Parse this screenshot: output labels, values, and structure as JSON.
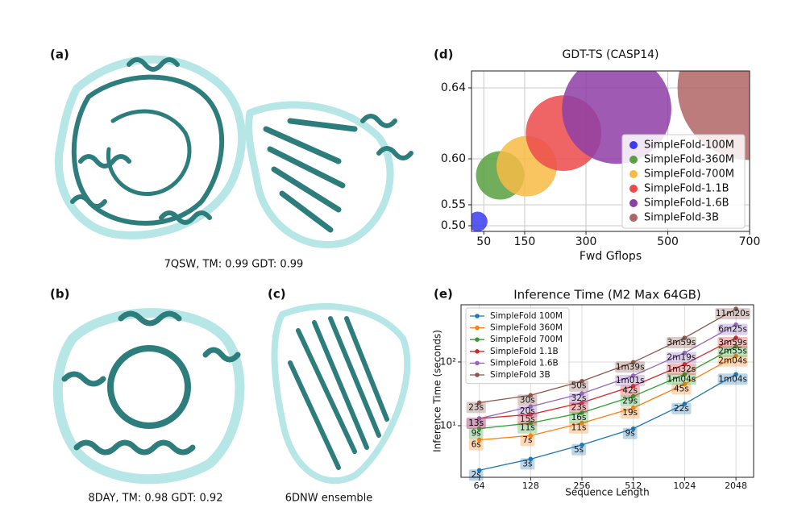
{
  "figure": {
    "panel_labels": [
      "(a)",
      "(b)",
      "(c)",
      "(d)",
      "(e)"
    ],
    "captions": [
      "7QSW, TM: 0.99 GDT: 0.99",
      "8DAY, TM: 0.98 GDT: 0.92",
      "6DNW ensemble"
    ]
  },
  "chart_data": [
    {
      "type": "bubble",
      "title": "GDT-TS (CASP14)",
      "x_label": "Fwd Gflops",
      "xlim": [
        20,
        700
      ],
      "xticks": [
        50,
        150,
        300,
        500,
        700
      ],
      "ylim": [
        0.495,
        0.65
      ],
      "yticks": [
        {
          "value": 0.5,
          "label": "0.50"
        },
        0.55,
        {
          "value": 0.6,
          "label": "0.60"
        },
        0.64
      ],
      "grid": true,
      "legend": "lower right",
      "series": [
        {
          "name": "SimpleFold-100M",
          "color": "#3b3bf0",
          "x": [
            35
          ],
          "values": [
            0.51
          ],
          "sizes": [
            150
          ]
        },
        {
          "name": "SimpleFold-360M",
          "color": "#58a040",
          "x": [
            90
          ],
          "values": [
            0.582
          ],
          "sizes": [
            900
          ]
        },
        {
          "name": "SimpleFold-700M",
          "color": "#f7bb45",
          "x": [
            155
          ],
          "values": [
            0.592
          ],
          "sizes": [
            1400
          ]
        },
        {
          "name": "SimpleFold-1.1B",
          "color": "#ec4a4a",
          "x": [
            245
          ],
          "values": [
            0.6145
          ],
          "sizes": [
            2200
          ]
        },
        {
          "name": "SimpleFold-1.6B",
          "color": "#8e3ea6",
          "x": [
            375
          ],
          "values": [
            0.628
          ],
          "sizes": [
            4600
          ]
        },
        {
          "name": "SimpleFold-3B",
          "color": "#b06565",
          "x": [
            700
          ],
          "values": [
            0.64
          ],
          "sizes": [
            8000
          ]
        }
      ]
    },
    {
      "type": "line",
      "title": "Inference Time (M2 Max 64GB)",
      "x_label": "Sequence Length",
      "y_label": "Inference Time (seconds)",
      "x": [
        64,
        128,
        256,
        512,
        1024,
        2048
      ],
      "xscale": "log",
      "yscale": "log",
      "xlim": [
        50,
        2600
      ],
      "xticks": [
        64,
        128,
        256,
        512,
        1024,
        2048
      ],
      "ylim": [
        1.55,
        790
      ],
      "yticks": [
        {
          "value": 10,
          "label": "10¹"
        },
        {
          "value": 100,
          "label": "10²"
        }
      ],
      "grid": true,
      "legend": "upper left",
      "series": [
        {
          "name": "SimpleFold 100M",
          "color": "#1f77b4",
          "values": [
            2,
            3,
            5,
            9,
            22,
            64
          ],
          "value_labels": [
            "2s",
            "3s",
            "5s",
            "9s",
            "22s",
            "1m04s"
          ]
        },
        {
          "name": "SimpleFold 360M",
          "color": "#ff7f0e",
          "values": [
            6,
            7,
            11,
            19,
            45,
            124
          ],
          "value_labels": [
            "6s",
            "7s",
            "11s",
            "19s",
            "45s",
            "2m04s"
          ]
        },
        {
          "name": "SimpleFold 700M",
          "color": "#2ca02c",
          "values": [
            9,
            11,
            16,
            29,
            64,
            175
          ],
          "value_labels": [
            "9s",
            "11s",
            "16s",
            "29s",
            "1m04s",
            "2m55s"
          ]
        },
        {
          "name": "SimpleFold 1.1B",
          "color": "#d62728",
          "values": [
            13,
            15,
            23,
            42,
            92,
            239
          ],
          "value_labels": [
            "13s",
            "15s",
            "23s",
            "42s",
            "1m32s",
            "3m59s"
          ]
        },
        {
          "name": "SimpleFold 1.6B",
          "color": "#9467bd",
          "values": [
            13,
            20,
            32,
            61,
            139,
            385
          ],
          "value_labels": [
            "13s",
            "20s",
            "32s",
            "1m01s",
            "2m19s",
            "6m25s"
          ]
        },
        {
          "name": "SimpleFold 3B",
          "color": "#8c564b",
          "values": [
            23,
            30,
            50,
            99,
            239,
            680
          ],
          "value_labels": [
            "23s",
            "30s",
            "50s",
            "1m39s",
            "3m59s",
            "11m20s"
          ]
        }
      ]
    }
  ]
}
